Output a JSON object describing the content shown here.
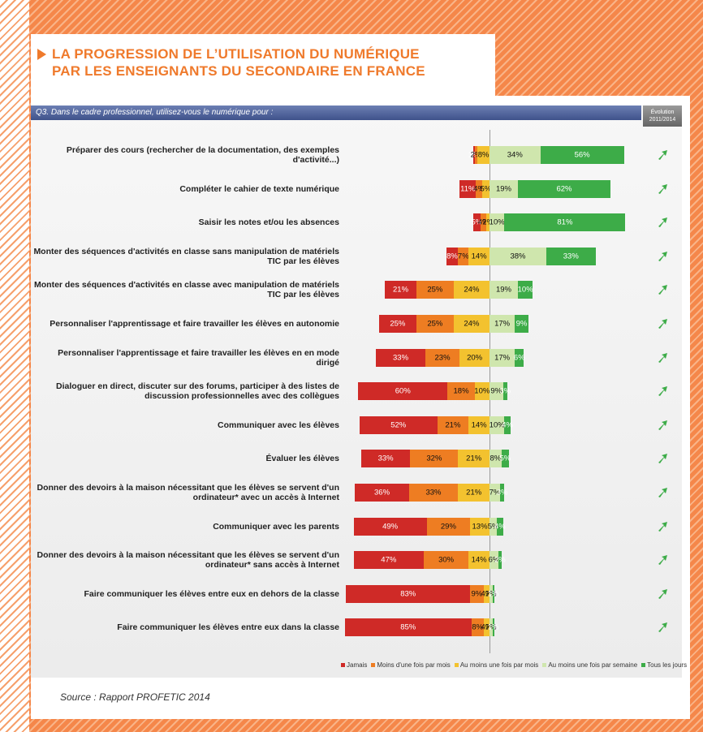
{
  "title": [
    "LA PROGRESSION DE L’UTILISATION DU NUMÉRIQUE",
    "PAR LES ENSEIGNANTS DU SECONDAIRE EN FRANCE"
  ],
  "source": "Source : Rapport PROFETIC 2014",
  "chart_data": {
    "type": "bar",
    "orientation": "horizontal",
    "stacked": "diverging",
    "subtitle": "Q3. Dans le cadre professionnel, utilisez-vous le numérique pour :",
    "evolution_label": "Évolution 2011/2014",
    "categories": [
      "Préparer des cours (rechercher de la documentation, des exemples d'activité...)",
      "Compléter le cahier de texte numérique",
      "Saisir les notes et/ou les absences",
      "Monter des séquences d'activités en classe sans manipulation de matériels TIC par les élèves",
      "Monter des séquences d'activités en classe avec manipulation de matériels TIC par les élèves",
      "Personnaliser l'apprentissage et faire travailler les élèves en autonomie",
      "Personnaliser l'apprentissage et faire travailler les élèves en en mode dirigé",
      "Dialoguer en direct, discuter sur des forums, participer à des listes de discussion professionnelles avec des collègues",
      "Communiquer avec les élèves",
      "Évaluer les élèves",
      "Donner des devoirs à la maison nécessitant que les élèves se servent d'un ordinateur* avec un accès à Internet",
      "Communiquer avec les parents",
      "Donner des devoirs à la maison nécessitant que les élèves se servent d'un ordinateur* sans accès à Internet",
      "Faire communiquer les élèves entre eux en dehors de la classe",
      "Faire communiquer les élèves entre eux dans la classe"
    ],
    "series": [
      {
        "name": "Jamais",
        "color": "#cf2a27",
        "values": [
          1,
          11,
          5,
          8,
          21,
          25,
          33,
          60,
          52,
          33,
          36,
          49,
          47,
          83,
          85
        ],
        "value_labels": [
          "1%",
          "11%",
          "5%",
          "8%",
          "21%",
          "25%",
          "33%",
          "60%",
          "52%",
          "33%",
          "36%",
          "49%",
          "47%",
          "83%",
          "85%"
        ]
      },
      {
        "name": "Moins d'une fois par mois",
        "color": "#ee7d22",
        "values": [
          2,
          4,
          4,
          7,
          25,
          25,
          23,
          18,
          21,
          32,
          33,
          29,
          30,
          9,
          8
        ],
        "value_labels": [
          "2%",
          "4%",
          "4%",
          "7%",
          "25%",
          "25%",
          "23%",
          "18%",
          "21%",
          "32%",
          "33%",
          "29%",
          "30%",
          "9%",
          "8%"
        ]
      },
      {
        "name": "Au moins une fois par mois",
        "color": "#f3c22f",
        "values": [
          8,
          5,
          2,
          14,
          24,
          24,
          20,
          10,
          14,
          21,
          21,
          13,
          14,
          4,
          4
        ],
        "value_labels": [
          "8%",
          "5%",
          "2%",
          "14%",
          "24%",
          "24%",
          "20%",
          "10%",
          "14%",
          "21%",
          "21%",
          "13%",
          "14%",
          "4%",
          "4%"
        ]
      },
      {
        "name": "Au moins une fois par semaine",
        "color": "#cfe6ad",
        "values": [
          34,
          19,
          10,
          38,
          19,
          17,
          17,
          9,
          10,
          8,
          7,
          5,
          6,
          2,
          2
        ],
        "value_labels": [
          "34%",
          "19%",
          "10%",
          "38%",
          "19%",
          "17%",
          "17%",
          "9%",
          "10%",
          "8%",
          "7%",
          "5%",
          "6%",
          "2%",
          "2%"
        ]
      },
      {
        "name": "Tous les jours",
        "color": "#3dac48",
        "values": [
          56,
          62,
          81,
          33,
          10,
          9,
          6,
          3,
          4,
          5,
          3,
          4,
          2,
          1,
          1
        ],
        "value_labels": [
          "56%",
          "62%",
          "81%",
          "33%",
          "10%",
          "9%",
          "6%",
          "3%",
          "4%",
          "5%",
          "3%",
          "4%",
          "2%",
          "1%",
          "1%"
        ]
      }
    ]
  }
}
